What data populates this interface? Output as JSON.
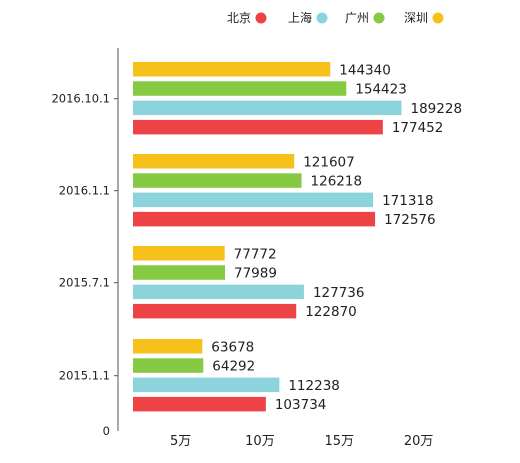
{
  "chart_data": {
    "type": "bar",
    "orientation": "horizontal",
    "categories": [
      "2016.10.1",
      "2016.1.1",
      "2015.7.1",
      "2015.1.1"
    ],
    "series": [
      {
        "name": "深圳",
        "color": "#f6c11b",
        "values": [
          144340,
          121607,
          77772,
          63678
        ]
      },
      {
        "name": "广州",
        "color": "#86c943",
        "values": [
          154423,
          126218,
          77989,
          64292
        ]
      },
      {
        "name": "上海",
        "color": "#8dd3dc",
        "values": [
          189228,
          171318,
          127736,
          112238
        ]
      },
      {
        "name": "北京",
        "color": "#ee4344",
        "values": [
          177452,
          172576,
          122870,
          103734
        ]
      }
    ],
    "legend_order": [
      "北京",
      "上海",
      "广州",
      "深圳"
    ],
    "legend_position": "top-right",
    "x_ticks": [
      {
        "value": 50000,
        "label": "5万"
      },
      {
        "value": 100000,
        "label": "10万"
      },
      {
        "value": 150000,
        "label": "15万"
      },
      {
        "value": 200000,
        "label": "20万"
      }
    ],
    "origin_label": "0",
    "xlim": [
      20000,
      235000
    ],
    "grid": false,
    "data_labels": true
  }
}
